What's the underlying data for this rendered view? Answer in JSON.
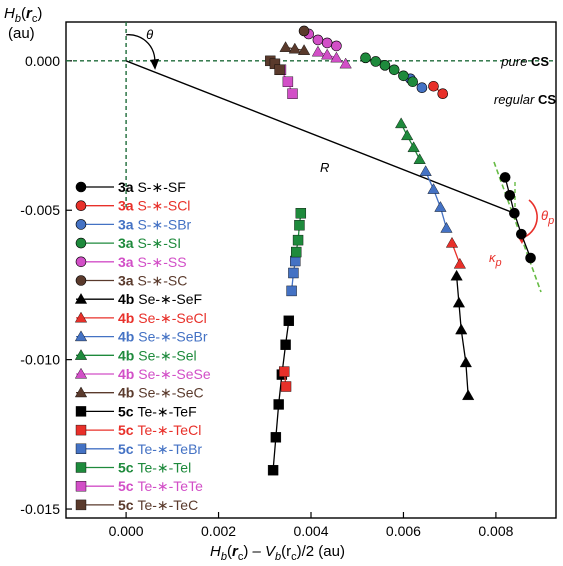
{
  "chart_data": {
    "type": "scatter",
    "xlabel": {
      "prefix": "H",
      "prefix_sub": "b",
      "open": "(",
      "arg": "r",
      "arg_sub": "c",
      "close": ")",
      "mid": " – V",
      "mid_sub": "b",
      "rest": "(r",
      "rest_sub": "c",
      "tail": ")/2 (au)"
    },
    "ylabel": {
      "line1_main": "H",
      "line1_sub": "b",
      "line1_open": "(",
      "line1_arg": "r",
      "line1_arg_sub": "c",
      "line1_close": ")",
      "line2": "(au)"
    },
    "xlim": [
      -0.0013,
      0.0093
    ],
    "ylim": [
      -0.0153,
      0.0013
    ],
    "xticks": [
      0.0,
      0.002,
      0.004,
      0.006,
      0.008
    ],
    "xtick_labels": [
      "0.000",
      "0.002",
      "0.004",
      "0.006",
      "0.008"
    ],
    "yticks": [
      0.0,
      -0.005,
      -0.01,
      -0.015
    ],
    "ytick_labels": [
      "0.000",
      "-0.005",
      "-0.010",
      "-0.015"
    ],
    "grid": false,
    "legend_position": "left",
    "annotations": {
      "pure_cs": {
        "italic": "pure",
        "bold": "CS"
      },
      "regular_cs": {
        "italic": "regular",
        "bold": "CS"
      },
      "theta": "θ",
      "R": "R",
      "theta_p_main": "θ",
      "theta_p_sub": "p",
      "kappa_p_main": "κ",
      "kappa_p_sub": "p"
    },
    "colors": {
      "black": "#000000",
      "red": "#e8302a",
      "blue": "#4472c4",
      "green": "#1e8a3c",
      "magenta": "#d24fc7",
      "brown": "#5a3a2c",
      "dashed_axis": "#1e6b3a",
      "tangent": "#66bb44"
    },
    "series": [
      {
        "group": "3a",
        "name": "S-∗-SF",
        "color": "#000000",
        "marker": "circle",
        "x": [
          0.0082,
          0.0083,
          0.0084,
          0.00855,
          0.00875
        ],
        "y": [
          -0.0039,
          -0.0045,
          -0.0051,
          -0.0058,
          -0.0066
        ]
      },
      {
        "group": "3a",
        "name": "S-∗-SCl",
        "color": "#e8302a",
        "marker": "circle",
        "x": [
          0.00665,
          0.00685
        ],
        "y": [
          -0.00085,
          -0.0011
        ]
      },
      {
        "group": "3a",
        "name": "S-∗-SBr",
        "color": "#4472c4",
        "marker": "circle",
        "x": [
          0.00615,
          0.0064
        ],
        "y": [
          -0.0006,
          -0.0009
        ]
      },
      {
        "group": "3a",
        "name": "S-∗-SI",
        "color": "#1e8a3c",
        "marker": "circle",
        "x": [
          0.00518,
          0.0054,
          0.0056,
          0.0058,
          0.006,
          0.0062
        ],
        "y": [
          0.0001,
          -2e-05,
          -0.00015,
          -0.0003,
          -0.0005,
          -0.0007
        ]
      },
      {
        "group": "3a",
        "name": "S-∗-SS",
        "color": "#d24fc7",
        "marker": "circle",
        "x": [
          0.00395,
          0.00415,
          0.00435,
          0.00455
        ],
        "y": [
          0.0009,
          0.0007,
          0.0006,
          0.0005
        ]
      },
      {
        "group": "3a",
        "name": "S-∗-SC",
        "color": "#5a3a2c",
        "marker": "circle",
        "x": [
          0.00385
        ],
        "y": [
          0.001
        ]
      },
      {
        "group": "4b",
        "name": "Se-∗-SeF",
        "color": "#000000",
        "marker": "triangle",
        "x": [
          0.00715,
          0.0072,
          0.00725,
          0.00735,
          0.0074
        ],
        "y": [
          -0.0072,
          -0.0081,
          -0.009,
          -0.0101,
          -0.0112
        ]
      },
      {
        "group": "4b",
        "name": "Se-∗-SeCl",
        "color": "#e8302a",
        "marker": "triangle",
        "x": [
          0.00705,
          0.00722
        ],
        "y": [
          -0.0061,
          -0.0068
        ]
      },
      {
        "group": "4b",
        "name": "Se-∗-SeBr",
        "color": "#4472c4",
        "marker": "triangle",
        "x": [
          0.00648,
          0.00665,
          0.0068,
          0.00693
        ],
        "y": [
          -0.0037,
          -0.0043,
          -0.0049,
          -0.0056
        ]
      },
      {
        "group": "4b",
        "name": "Se-∗-Sel",
        "color": "#1e8a3c",
        "marker": "triangle",
        "x": [
          0.00595,
          0.00608,
          0.00622,
          0.00635
        ],
        "y": [
          -0.0021,
          -0.0025,
          -0.0029,
          -0.0033
        ]
      },
      {
        "group": "4b",
        "name": "Se-∗-SeSe",
        "color": "#d24fc7",
        "marker": "triangle",
        "x": [
          0.00415,
          0.00435,
          0.00455,
          0.00475
        ],
        "y": [
          0.0003,
          0.0002,
          0.0001,
          -0.0001
        ]
      },
      {
        "group": "4b",
        "name": "Se-∗-SeC",
        "color": "#5a3a2c",
        "marker": "triangle",
        "x": [
          0.00345,
          0.00365,
          0.00385
        ],
        "y": [
          0.00045,
          0.0004,
          0.00035
        ]
      },
      {
        "group": "5c",
        "name": "Te-∗-TeF",
        "color": "#000000",
        "marker": "square",
        "x": [
          0.00318,
          0.00324,
          0.0033,
          0.00337,
          0.00345,
          0.00352
        ],
        "y": [
          -0.0137,
          -0.0126,
          -0.0115,
          -0.0105,
          -0.0095,
          -0.0087
        ]
      },
      {
        "group": "5c",
        "name": "Te-∗-TeCl",
        "color": "#e8302a",
        "marker": "square",
        "x": [
          0.00342,
          0.00346
        ],
        "y": [
          -0.0104,
          -0.0109
        ]
      },
      {
        "group": "5c",
        "name": "Te-∗-TeBr",
        "color": "#4472c4",
        "marker": "square",
        "x": [
          0.00358,
          0.00362,
          0.00366
        ],
        "y": [
          -0.0077,
          -0.0071,
          -0.0067
        ]
      },
      {
        "group": "5c",
        "name": "Te-∗-Tel",
        "color": "#1e8a3c",
        "marker": "square",
        "x": [
          0.00368,
          0.00372,
          0.00375,
          0.00378
        ],
        "y": [
          -0.0064,
          -0.006,
          -0.0055,
          -0.0051
        ]
      },
      {
        "group": "5c",
        "name": "Te-∗-TeTe",
        "color": "#d24fc7",
        "marker": "square",
        "x": [
          0.00335,
          0.0035,
          0.0036
        ],
        "y": [
          -0.0003,
          -0.0007,
          -0.0011
        ]
      },
      {
        "group": "5c",
        "name": "Te-∗-TeC",
        "color": "#5a3a2c",
        "marker": "square",
        "x": [
          0.00312,
          0.00322,
          0.00332
        ],
        "y": [
          0.0,
          -0.0001,
          -0.0003
        ]
      }
    ],
    "reference_line": {
      "x": [
        0.0,
        0.0084
      ],
      "y": [
        0.0,
        -0.0051
      ]
    }
  }
}
